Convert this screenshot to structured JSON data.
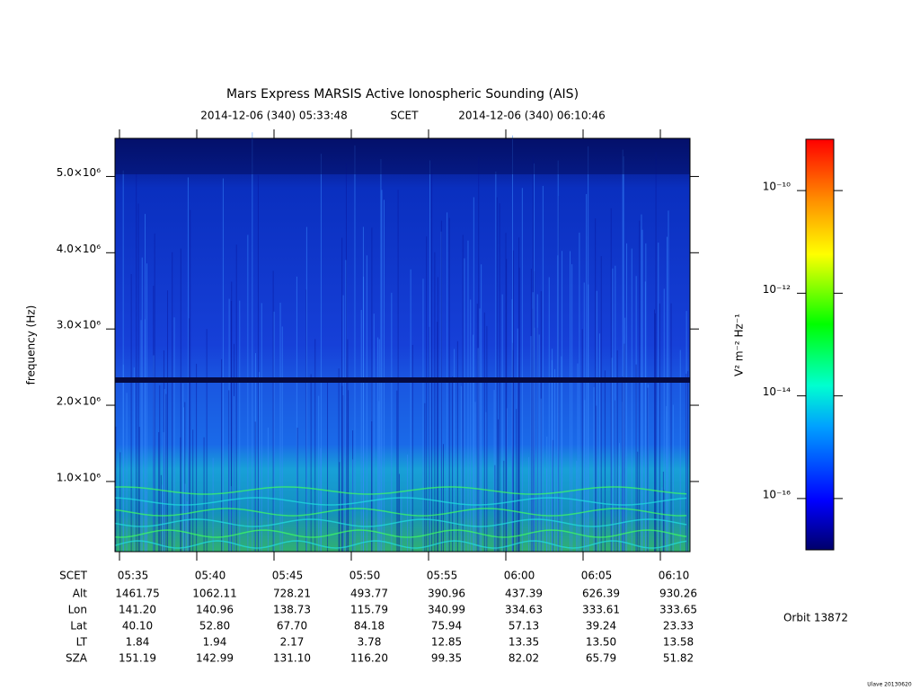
{
  "chart_data": {
    "type": "spectrogram",
    "title": "Mars Express MARSIS Active Ionospheric Sounding (AIS)",
    "subtitle": {
      "start": "2014-12-06 (340) 05:33:48",
      "frame": "SCET",
      "end": "2014-12-06 (340) 06:10:46"
    },
    "y_label": "frequency (Hz)",
    "ylim": [
      80000,
      5500000
    ],
    "yticks": [
      {
        "value": 1000000,
        "label": "1.0×10⁶"
      },
      {
        "value": 2000000,
        "label": "2.0×10⁶"
      },
      {
        "value": 3000000,
        "label": "3.0×10⁶"
      },
      {
        "value": 4000000,
        "label": "4.0×10⁶"
      },
      {
        "value": 5000000,
        "label": "5.0×10⁶"
      }
    ],
    "ephemeris": {
      "row_labels": [
        "SCET",
        "Alt",
        "Lon",
        "Lat",
        "LT",
        "SZA"
      ],
      "columns": [
        "05:35",
        "05:40",
        "05:45",
        "05:50",
        "05:55",
        "06:00",
        "06:05",
        "06:10"
      ],
      "rows": [
        [
          1461.75,
          1062.11,
          728.21,
          493.77,
          390.96,
          437.39,
          626.39,
          930.26
        ],
        [
          {
            "value": 141.2,
            "label": "141.20"
          },
          140.96,
          138.73,
          115.79,
          340.99,
          334.63,
          333.61,
          333.65
        ],
        [
          {
            "value": 40.1,
            "label": "40.10"
          },
          {
            "value": 52.8,
            "label": "52.80"
          },
          {
            "value": 67.7,
            "label": "67.70"
          },
          84.18,
          75.94,
          57.13,
          39.24,
          23.33
        ],
        [
          1.84,
          1.94,
          2.17,
          3.78,
          12.85,
          13.35,
          {
            "value": 13.5,
            "label": "13.50"
          },
          13.58
        ],
        [
          151.19,
          142.99,
          {
            "value": 131.1,
            "label": "131.10"
          },
          {
            "value": 116.2,
            "label": "116.20"
          },
          99.35,
          82.02,
          65.79,
          51.82
        ]
      ]
    },
    "colorbar": {
      "label": "V² m⁻² Hz⁻¹",
      "log_scale": true,
      "zlim": [
        1e-17,
        1e-09
      ],
      "ticks": [
        {
          "value": 1e-10,
          "label": "10⁻¹⁰"
        },
        {
          "value": 1e-12,
          "label": "10⁻¹²"
        },
        {
          "value": 1e-14,
          "label": "10⁻¹⁴"
        },
        {
          "value": 1e-16,
          "label": "10⁻¹⁶"
        }
      ]
    },
    "orbit": "Orbit 13872",
    "credit": "Ulave 20130620"
  }
}
